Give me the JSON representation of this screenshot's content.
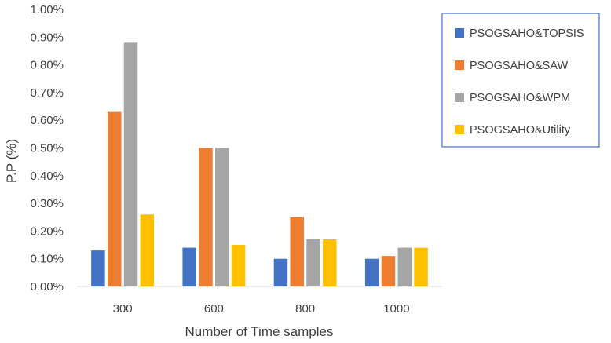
{
  "chart_data": {
    "type": "bar",
    "title": "",
    "xlabel": "Number of Time samples",
    "ylabel": "P.P (%)",
    "ylim": [
      0,
      1.0
    ],
    "ytick_step": 0.1,
    "ytick_suffix": "%",
    "grid": false,
    "legend_position": "top-right",
    "categories": [
      "300",
      "600",
      "800",
      "1000"
    ],
    "series": [
      {
        "name": "PSOGSAHO&TOPSIS",
        "color": "#4472C4",
        "values": [
          0.13,
          0.14,
          0.1,
          0.1
        ]
      },
      {
        "name": "PSOGSAHO&SAW",
        "color": "#ED7D31",
        "values": [
          0.63,
          0.5,
          0.25,
          0.11
        ]
      },
      {
        "name": "PSOGSAHO&WPM",
        "color": "#A5A5A5",
        "values": [
          0.88,
          0.5,
          0.17,
          0.14
        ]
      },
      {
        "name": "PSOGSAHO&Utility",
        "color": "#FFC000",
        "values": [
          0.26,
          0.15,
          0.17,
          0.14
        ]
      }
    ]
  }
}
